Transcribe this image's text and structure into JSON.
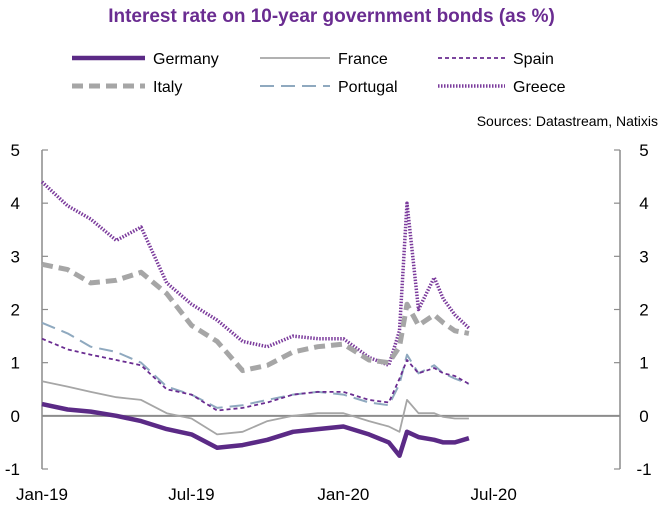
{
  "chart_data": {
    "type": "line",
    "title": "Interest rate on 10-year government bonds (as %)",
    "source": "Sources: Datastream, Natixis",
    "xlabel": "",
    "ylabel": "",
    "ylim": [
      -1,
      5
    ],
    "x_ticks": [
      "Jan-19",
      "Jul-19",
      "Jan-20",
      "Jul-20"
    ],
    "y_ticks": [
      "-1",
      "0",
      "1",
      "2",
      "3",
      "4",
      "5"
    ],
    "grid": false,
    "legend_position": "top",
    "colors": {
      "germany": "#5b2a86",
      "france": "#a6a6a6",
      "spain": "#6a2c91",
      "italy": "#a6a6a6",
      "portugal": "#8fa9bf",
      "greece": "#7b3b9c"
    },
    "x": [
      "2019-01-01",
      "2019-02-01",
      "2019-03-01",
      "2019-04-01",
      "2019-05-01",
      "2019-06-01",
      "2019-07-01",
      "2019-08-01",
      "2019-09-01",
      "2019-10-01",
      "2019-11-01",
      "2019-12-01",
      "2020-01-01",
      "2020-02-01",
      "2020-02-25",
      "2020-03-09",
      "2020-03-18",
      "2020-04-01",
      "2020-04-20",
      "2020-05-01",
      "2020-05-15",
      "2020-06-01"
    ],
    "series": [
      {
        "name": "Germany",
        "values": [
          0.22,
          0.12,
          0.08,
          0.0,
          -0.1,
          -0.25,
          -0.35,
          -0.6,
          -0.55,
          -0.45,
          -0.3,
          -0.25,
          -0.2,
          -0.35,
          -0.5,
          -0.75,
          -0.3,
          -0.4,
          -0.45,
          -0.5,
          -0.5,
          -0.42
        ]
      },
      {
        "name": "France",
        "values": [
          0.65,
          0.55,
          0.45,
          0.35,
          0.3,
          0.05,
          -0.05,
          -0.35,
          -0.3,
          -0.1,
          0.0,
          0.05,
          0.05,
          -0.1,
          -0.2,
          -0.3,
          0.3,
          0.05,
          0.05,
          -0.02,
          -0.05,
          -0.05
        ]
      },
      {
        "name": "Spain",
        "values": [
          1.45,
          1.25,
          1.15,
          1.05,
          0.95,
          0.5,
          0.4,
          0.1,
          0.15,
          0.25,
          0.4,
          0.45,
          0.45,
          0.3,
          0.25,
          0.7,
          1.05,
          0.8,
          0.9,
          0.8,
          0.75,
          0.6
        ]
      },
      {
        "name": "Italy",
        "values": [
          2.85,
          2.75,
          2.5,
          2.55,
          2.7,
          2.3,
          1.7,
          1.4,
          0.85,
          0.95,
          1.2,
          1.3,
          1.35,
          1.05,
          1.0,
          1.3,
          2.1,
          1.7,
          1.9,
          1.75,
          1.6,
          1.55
        ]
      },
      {
        "name": "Portugal",
        "values": [
          1.75,
          1.55,
          1.3,
          1.2,
          1.0,
          0.55,
          0.4,
          0.15,
          0.2,
          0.3,
          0.4,
          0.45,
          0.4,
          0.25,
          0.2,
          0.6,
          1.15,
          0.8,
          0.95,
          0.8,
          0.7,
          0.6
        ]
      },
      {
        "name": "Greece",
        "values": [
          4.4,
          3.95,
          3.7,
          3.3,
          3.55,
          2.5,
          2.1,
          1.8,
          1.4,
          1.3,
          1.5,
          1.45,
          1.45,
          1.1,
          0.95,
          1.6,
          4.0,
          2.0,
          2.6,
          2.2,
          1.9,
          1.65
        ]
      }
    ]
  }
}
